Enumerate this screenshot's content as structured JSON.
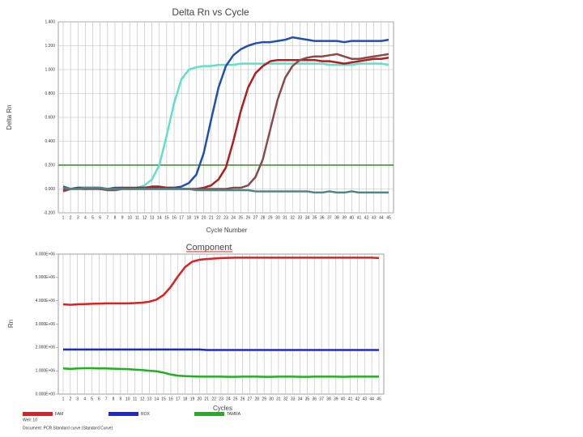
{
  "chart_data": [
    {
      "type": "line",
      "title": "Delta Rn vs Cycle",
      "x_label": "Cycle Number",
      "y_label": "Delta Rn",
      "x": [
        1,
        2,
        3,
        4,
        5,
        6,
        7,
        8,
        9,
        10,
        11,
        12,
        13,
        14,
        15,
        16,
        17,
        18,
        19,
        20,
        21,
        22,
        23,
        24,
        25,
        26,
        27,
        28,
        29,
        30,
        31,
        32,
        33,
        34,
        35,
        36,
        37,
        38,
        39,
        40,
        41,
        42,
        43,
        44,
        45
      ],
      "xlim": [
        1,
        45
      ],
      "xticks": [
        1,
        2,
        3,
        4,
        5,
        6,
        7,
        8,
        9,
        10,
        11,
        12,
        13,
        14,
        15,
        16,
        17,
        18,
        19,
        20,
        21,
        22,
        23,
        24,
        25,
        26,
        27,
        28,
        29,
        30,
        31,
        32,
        33,
        34,
        35,
        36,
        37,
        38,
        39,
        40,
        41,
        42,
        43,
        44,
        45
      ],
      "ylim": [
        -0.2,
        1.4
      ],
      "yticks": [
        {
          "value": -0.2,
          "label": "-0.200"
        },
        {
          "value": 0,
          "label": "0.000"
        },
        {
          "value": 0.2,
          "label": "0.200"
        },
        {
          "value": 0.4,
          "label": "0.400"
        },
        {
          "value": 0.6,
          "label": "0.600"
        },
        {
          "value": 0.8,
          "label": "0.800"
        },
        {
          "value": 1,
          "label": "1.000"
        },
        {
          "value": 1.2,
          "label": "1.200"
        },
        {
          "value": 1.4,
          "label": "1.400"
        }
      ],
      "grid": "both",
      "threshold": 0.2,
      "threshold_color": "#3a8a2a",
      "series": [
        {
          "color": "#5fe0c8",
          "values": [
            0.02,
            0.0,
            0.01,
            0.01,
            0.01,
            0.01,
            0.0,
            0.0,
            0.0,
            0.0,
            0.01,
            0.03,
            0.08,
            0.2,
            0.45,
            0.72,
            0.92,
            1.0,
            1.02,
            1.03,
            1.03,
            1.04,
            1.04,
            1.04,
            1.05,
            1.05,
            1.05,
            1.05,
            1.05,
            1.05,
            1.05,
            1.05,
            1.05,
            1.05,
            1.05,
            1.05,
            1.04,
            1.04,
            1.04,
            1.04,
            1.05,
            1.05,
            1.05,
            1.05,
            1.04
          ]
        },
        {
          "color": "#1f4fb0",
          "values": [
            0.02,
            0.0,
            0.01,
            0.01,
            0.01,
            0.01,
            0.0,
            0.01,
            0.01,
            0.0,
            0.01,
            0.01,
            0.01,
            0.01,
            0.01,
            0.01,
            0.02,
            0.05,
            0.12,
            0.3,
            0.58,
            0.85,
            1.03,
            1.12,
            1.17,
            1.2,
            1.22,
            1.23,
            1.23,
            1.24,
            1.25,
            1.27,
            1.26,
            1.25,
            1.24,
            1.24,
            1.24,
            1.24,
            1.23,
            1.24,
            1.24,
            1.24,
            1.24,
            1.24,
            1.25
          ]
        },
        {
          "color": "#b01e1e",
          "values": [
            -0.01,
            0.0,
            0.01,
            0.0,
            0.01,
            0.0,
            0.0,
            0.0,
            0.01,
            0.01,
            0.01,
            0.01,
            0.02,
            0.02,
            0.01,
            0.01,
            0.0,
            0.0,
            0.0,
            0.01,
            0.03,
            0.08,
            0.18,
            0.4,
            0.65,
            0.85,
            0.97,
            1.03,
            1.07,
            1.08,
            1.08,
            1.08,
            1.08,
            1.08,
            1.08,
            1.07,
            1.07,
            1.06,
            1.05,
            1.06,
            1.07,
            1.08,
            1.09,
            1.09,
            1.1
          ]
        },
        {
          "color": "#8a4a4a",
          "values": [
            -0.02,
            0.0,
            0.0,
            0.0,
            0.0,
            0.0,
            -0.01,
            -0.01,
            0.0,
            0.0,
            0.0,
            0.0,
            0.0,
            0.0,
            0.0,
            0.0,
            0.0,
            0.0,
            0.0,
            0.0,
            0.0,
            0.0,
            0.0,
            0.01,
            0.01,
            0.03,
            0.1,
            0.25,
            0.5,
            0.75,
            0.93,
            1.03,
            1.08,
            1.1,
            1.11,
            1.11,
            1.12,
            1.13,
            1.11,
            1.09,
            1.09,
            1.1,
            1.11,
            1.12,
            1.13
          ]
        },
        {
          "color": "#4f8585",
          "values": [
            0.01,
            0.0,
            0.0,
            0.01,
            0.01,
            0.01,
            0.0,
            0.0,
            0.0,
            0.0,
            0.0,
            0.0,
            0.0,
            0.0,
            0.0,
            0.0,
            0.0,
            0.0,
            -0.01,
            -0.01,
            -0.01,
            -0.01,
            -0.01,
            -0.01,
            -0.01,
            -0.01,
            -0.02,
            -0.02,
            -0.02,
            -0.02,
            -0.02,
            -0.02,
            -0.02,
            -0.02,
            -0.03,
            -0.03,
            -0.02,
            -0.03,
            -0.03,
            -0.02,
            -0.03,
            -0.03,
            -0.03,
            -0.03,
            -0.03
          ]
        }
      ]
    },
    {
      "type": "line",
      "title": "Component",
      "x_label": "Cycles",
      "y_label": "Rn",
      "x": [
        1,
        2,
        3,
        4,
        5,
        6,
        7,
        8,
        9,
        10,
        11,
        12,
        13,
        14,
        15,
        16,
        17,
        18,
        19,
        20,
        21,
        22,
        23,
        24,
        25,
        26,
        27,
        28,
        29,
        30,
        31,
        32,
        33,
        34,
        35,
        36,
        37,
        38,
        39,
        40,
        41,
        42,
        43,
        44,
        45
      ],
      "xlim": [
        1,
        45
      ],
      "xticks": [
        1,
        2,
        3,
        4,
        5,
        6,
        7,
        8,
        9,
        10,
        11,
        12,
        13,
        14,
        15,
        16,
        17,
        18,
        19,
        20,
        21,
        22,
        23,
        24,
        25,
        26,
        27,
        28,
        29,
        30,
        31,
        32,
        33,
        34,
        35,
        36,
        37,
        38,
        39,
        40,
        41,
        42,
        43,
        44,
        45
      ],
      "ylim": [
        0,
        6000000
      ],
      "yticks": [
        {
          "value": 0,
          "label": "0.000E+00"
        },
        {
          "value": 1000000,
          "label": "1.000E+06"
        },
        {
          "value": 2000000,
          "label": "2.000E+06"
        },
        {
          "value": 3000000,
          "label": "3.000E+06"
        },
        {
          "value": 4000000,
          "label": "4.000E+06"
        },
        {
          "value": 5000000,
          "label": "5.000E+06"
        },
        {
          "value": 6000000,
          "label": "6.000E+06"
        }
      ],
      "grid": "x",
      "series": [
        {
          "name": "FAM",
          "color": "#e02020",
          "values": [
            3850000,
            3830000,
            3850000,
            3860000,
            3870000,
            3880000,
            3890000,
            3890000,
            3890000,
            3890000,
            3900000,
            3920000,
            3960000,
            4050000,
            4250000,
            4600000,
            5050000,
            5450000,
            5680000,
            5760000,
            5790000,
            5810000,
            5830000,
            5840000,
            5850000,
            5850000,
            5850000,
            5850000,
            5850000,
            5850000,
            5850000,
            5850000,
            5850000,
            5850000,
            5850000,
            5850000,
            5850000,
            5850000,
            5850000,
            5850000,
            5850000,
            5850000,
            5850000,
            5850000,
            5830000
          ]
        },
        {
          "name": "ROX",
          "color": "#1a2ad0",
          "values": [
            1910000,
            1910000,
            1910000,
            1910000,
            1910000,
            1910000,
            1910000,
            1910000,
            1910000,
            1910000,
            1910000,
            1910000,
            1910000,
            1910000,
            1910000,
            1910000,
            1910000,
            1910000,
            1910000,
            1910000,
            1890000,
            1890000,
            1890000,
            1890000,
            1890000,
            1890000,
            1890000,
            1890000,
            1890000,
            1890000,
            1890000,
            1890000,
            1890000,
            1890000,
            1890000,
            1890000,
            1890000,
            1890000,
            1890000,
            1890000,
            1890000,
            1890000,
            1890000,
            1890000,
            1890000
          ]
        },
        {
          "name": "TAMRA",
          "color": "#20b020",
          "values": [
            1100000,
            1080000,
            1100000,
            1110000,
            1110000,
            1100000,
            1100000,
            1090000,
            1080000,
            1070000,
            1050000,
            1030000,
            1000000,
            980000,
            920000,
            840000,
            790000,
            770000,
            760000,
            750000,
            750000,
            750000,
            750000,
            740000,
            740000,
            750000,
            750000,
            750000,
            740000,
            740000,
            750000,
            750000,
            750000,
            740000,
            740000,
            750000,
            750000,
            750000,
            750000,
            740000,
            750000,
            750000,
            750000,
            750000,
            750000
          ]
        }
      ]
    }
  ],
  "footer": [
    "Well: 10",
    "Document: PCR Standard curve (Standard Curve)"
  ]
}
